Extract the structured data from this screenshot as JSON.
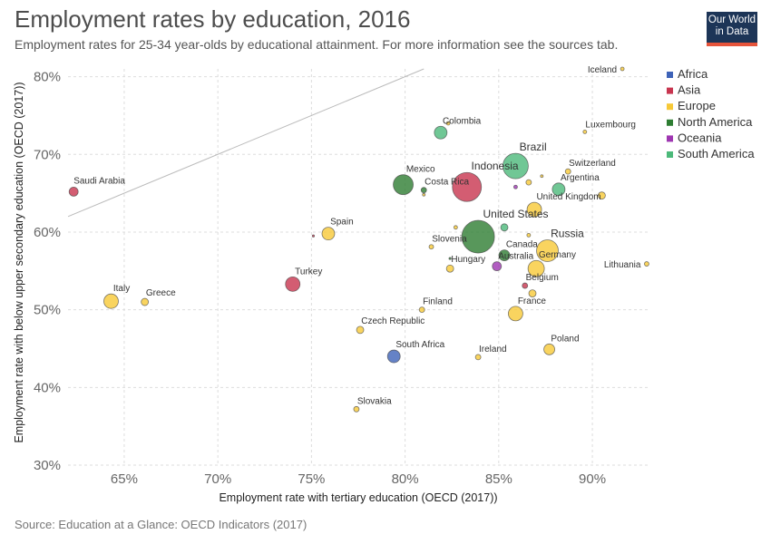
{
  "header": {
    "title": "Employment rates by education, 2016",
    "subtitle": "Employment rates for 25-34 year-olds by educational attainment. For more information see the sources tab."
  },
  "logo": {
    "line1": "Our World",
    "line2": "in Data"
  },
  "source": "Source: Education at a Glance: OECD Indicators (2017)",
  "chart_data": {
    "type": "scatter",
    "xlabel": "Employment rate with tertiary education (OECD (2017))",
    "ylabel": "Employment rate with below upper secondary education (OECD (2017))",
    "xlim": [
      62,
      93
    ],
    "ylim": [
      30,
      81
    ],
    "xticks": [
      65,
      70,
      75,
      80,
      85,
      90
    ],
    "yticks": [
      30,
      40,
      50,
      60,
      70,
      80
    ],
    "xtick_labels": [
      "65%",
      "70%",
      "75%",
      "80%",
      "85%",
      "90%"
    ],
    "ytick_labels": [
      "30%",
      "40%",
      "50%",
      "60%",
      "70%",
      "80%"
    ],
    "grid": true,
    "reference_line": "y = x",
    "legend_position": "right",
    "legend": [
      {
        "name": "Africa",
        "color": "#3e63b8"
      },
      {
        "name": "Asia",
        "color": "#c8354f"
      },
      {
        "name": "Europe",
        "color": "#f7c937"
      },
      {
        "name": "North America",
        "color": "#2e7d32"
      },
      {
        "name": "Oceania",
        "color": "#9e36b1"
      },
      {
        "name": "South America",
        "color": "#4cb97a"
      }
    ],
    "points": [
      {
        "label": "Iceland",
        "x": 91.6,
        "y": 81.0,
        "r": 2,
        "region": "Europe"
      },
      {
        "label": "Luxembourg",
        "x": 89.6,
        "y": 72.9,
        "r": 2,
        "region": "Europe"
      },
      {
        "label": "Colombia",
        "x": 81.9,
        "y": 72.8,
        "r": 7,
        "region": "South America"
      },
      {
        "label": "",
        "x": 82.3,
        "y": 74.0,
        "r": 2,
        "region": "Europe"
      },
      {
        "label": "Brazil",
        "x": 85.9,
        "y": 68.5,
        "r": 14,
        "region": "South America"
      },
      {
        "label": "Switzerland",
        "x": 88.7,
        "y": 67.8,
        "r": 3,
        "region": "Europe"
      },
      {
        "label": "Argentina",
        "x": 88.2,
        "y": 65.5,
        "r": 7,
        "region": "South America"
      },
      {
        "label": "",
        "x": 86.6,
        "y": 66.4,
        "r": 3,
        "region": "Europe"
      },
      {
        "label": "",
        "x": 85.9,
        "y": 65.8,
        "r": 2,
        "region": "Oceania"
      },
      {
        "label": "",
        "x": 87.3,
        "y": 67.2,
        "r": 1.5,
        "region": "Europe"
      },
      {
        "label": "",
        "x": 90.5,
        "y": 64.7,
        "r": 4,
        "region": "Europe"
      },
      {
        "label": "United Kingdom",
        "x": 86.9,
        "y": 62.9,
        "r": 8,
        "region": "Europe"
      },
      {
        "label": "Indonesia",
        "x": 83.3,
        "y": 65.8,
        "r": 16,
        "region": "Asia"
      },
      {
        "label": "Mexico",
        "x": 79.9,
        "y": 66.1,
        "r": 11,
        "region": "North America"
      },
      {
        "label": "Costa Rica",
        "x": 81.0,
        "y": 65.4,
        "r": 3,
        "region": "North America"
      },
      {
        "label": "",
        "x": 81.0,
        "y": 64.8,
        "r": 1.5,
        "region": "Europe"
      },
      {
        "label": "Saudi Arabia",
        "x": 62.3,
        "y": 65.2,
        "r": 5,
        "region": "Asia"
      },
      {
        "label": "Spain",
        "x": 75.9,
        "y": 59.8,
        "r": 7,
        "region": "Europe"
      },
      {
        "label": "",
        "x": 75.1,
        "y": 59.5,
        "r": 1.2,
        "region": "Asia"
      },
      {
        "label": "United States",
        "x": 83.9,
        "y": 59.4,
        "r": 18,
        "region": "North America"
      },
      {
        "label": "",
        "x": 85.3,
        "y": 60.6,
        "r": 4,
        "region": "South America"
      },
      {
        "label": "",
        "x": 82.7,
        "y": 60.6,
        "r": 2,
        "region": "Europe"
      },
      {
        "label": "",
        "x": 86.6,
        "y": 59.6,
        "r": 2,
        "region": "Europe"
      },
      {
        "label": "Slovenia",
        "x": 81.4,
        "y": 58.1,
        "r": 2.5,
        "region": "Europe"
      },
      {
        "label": "Canada",
        "x": 85.3,
        "y": 57.0,
        "r": 6,
        "region": "North America"
      },
      {
        "label": "Russia",
        "x": 87.6,
        "y": 57.6,
        "r": 12,
        "region": "Europe"
      },
      {
        "label": "Lithuania",
        "x": 92.9,
        "y": 55.9,
        "r": 2.5,
        "region": "Europe"
      },
      {
        "label": "Hungary",
        "x": 82.4,
        "y": 55.3,
        "r": 4,
        "region": "Europe"
      },
      {
        "label": "",
        "x": 82.4,
        "y": 56.6,
        "r": 1.2,
        "region": "North America"
      },
      {
        "label": "Australia",
        "x": 84.9,
        "y": 55.6,
        "r": 5,
        "region": "Oceania"
      },
      {
        "label": "Germany",
        "x": 87.0,
        "y": 55.3,
        "r": 9,
        "region": "Europe"
      },
      {
        "label": "Turkey",
        "x": 74.0,
        "y": 53.3,
        "r": 8,
        "region": "Asia"
      },
      {
        "label": "Belgium",
        "x": 86.4,
        "y": 53.1,
        "r": 3,
        "region": "Asia"
      },
      {
        "label": "",
        "x": 86.8,
        "y": 52.1,
        "r": 4,
        "region": "Europe"
      },
      {
        "label": "Italy",
        "x": 64.3,
        "y": 51.1,
        "r": 8,
        "region": "Europe"
      },
      {
        "label": "Greece",
        "x": 66.1,
        "y": 51.0,
        "r": 4,
        "region": "Europe"
      },
      {
        "label": "Finland",
        "x": 80.9,
        "y": 50.0,
        "r": 3,
        "region": "Europe"
      },
      {
        "label": "France",
        "x": 85.9,
        "y": 49.5,
        "r": 8,
        "region": "Europe"
      },
      {
        "label": "Czech Republic",
        "x": 77.6,
        "y": 47.4,
        "r": 4,
        "region": "Europe"
      },
      {
        "label": "Poland",
        "x": 87.7,
        "y": 44.9,
        "r": 6,
        "region": "Europe"
      },
      {
        "label": "South Africa",
        "x": 79.4,
        "y": 44.0,
        "r": 7,
        "region": "Africa"
      },
      {
        "label": "Ireland",
        "x": 83.9,
        "y": 43.9,
        "r": 3,
        "region": "Europe"
      },
      {
        "label": "Slovakia",
        "x": 77.4,
        "y": 37.2,
        "r": 3,
        "region": "Europe"
      }
    ]
  }
}
